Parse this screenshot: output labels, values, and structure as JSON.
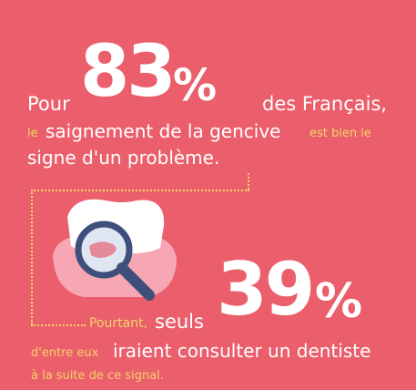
{
  "stat1": {
    "prefix": "Pour",
    "number": "83",
    "percent": "%",
    "suffix": "des Français,",
    "line2_a": "le",
    "line2_b": "saignement de la gencive",
    "line2_c": "est bien  le",
    "line3": "signe d'un problème."
  },
  "stat2": {
    "pre": "Pourtant,",
    "seuls": "seuls",
    "number": "39",
    "percent": "%",
    "line2_a": "d'entre eux",
    "line2_b": "iraient consulter un dentiste",
    "line3": "à la suite de ce signal."
  },
  "illustration": {
    "icon": "tooth-magnifier-icon"
  },
  "colors": {
    "background": "#ea5f6b",
    "accent": "#f6d36a",
    "text": "#ffffff"
  }
}
